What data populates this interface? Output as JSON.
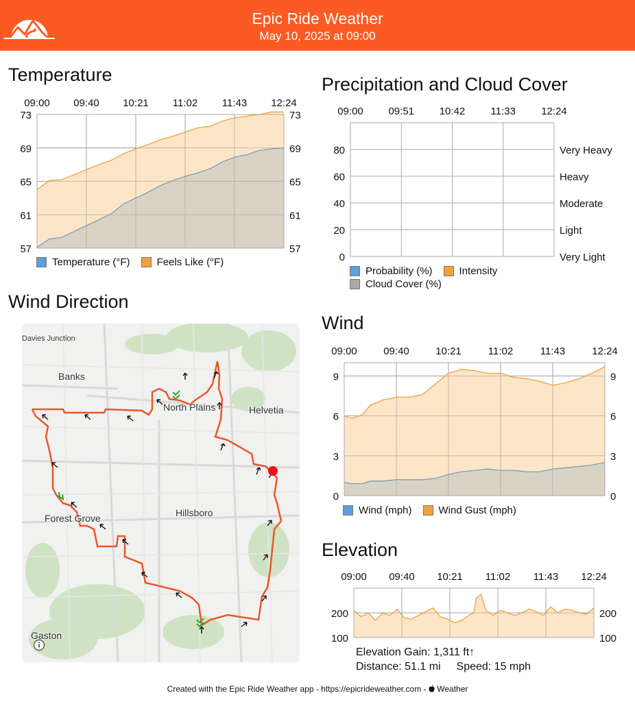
{
  "header": {
    "title": "Epic Ride Weather",
    "subtitle": "May 10, 2025 at 09:00",
    "logo_icon": "mountain-road-logo-icon",
    "background_color": "#fc5a23"
  },
  "panels": {
    "temperature": {
      "title": "Temperature"
    },
    "precipitation": {
      "title": "Precipitation and Cloud Cover"
    },
    "wind_direction": {
      "title": "Wind Direction"
    },
    "wind": {
      "title": "Wind"
    },
    "elevation": {
      "title": "Elevation"
    }
  },
  "legends": {
    "temperature": [
      "Temperature (°F)",
      "Feels Like (°F)"
    ],
    "precipitation": [
      "Probability (%)",
      "Intensity",
      "Cloud Cover (%)"
    ],
    "wind": [
      "Wind (mph)",
      "Wind Gust (mph)"
    ]
  },
  "map": {
    "labels": [
      "Davies Junction",
      "Banks",
      "North Plains",
      "Helvetia",
      "Forest Grove",
      "Hillsboro",
      "Gaston"
    ],
    "info_icon": "info-icon",
    "route_color": "#e8572a"
  },
  "elevation_stats": {
    "gain": "Elevation Gain: 1,311 ft↑",
    "distance": "Distance: 51.1 mi",
    "speed": "Speed: 15 mph"
  },
  "footer": {
    "text": "Created with the Epic Ride Weather app - https://epicrideweather.com - ",
    "apple_icon": "apple-icon",
    "weather": "Weather"
  },
  "colors": {
    "temperature_fill": "#d6d2c4",
    "feels_like_fill": "#fde4c4",
    "series_orange": "#f3a03b",
    "series_blue": "#5aa0dc",
    "series_gray": "#aaaaaa",
    "grid": "#aaaaaa"
  },
  "chart_data": [
    {
      "id": "temperature",
      "type": "area",
      "title": "Temperature",
      "x_ticks": [
        "09:00",
        "09:40",
        "10:21",
        "11:02",
        "11:43",
        "12:24"
      ],
      "y_ticks": [
        57,
        61,
        65,
        69,
        73
      ],
      "ylim": [
        57,
        73
      ],
      "x": [
        0,
        0.05,
        0.1,
        0.15,
        0.2,
        0.25,
        0.3,
        0.35,
        0.4,
        0.45,
        0.5,
        0.55,
        0.6,
        0.65,
        0.7,
        0.75,
        0.8,
        0.85,
        0.9,
        0.95,
        1
      ],
      "series": [
        {
          "name": "Temperature (°F)",
          "values": [
            57.1,
            58.1,
            58.3,
            59.0,
            59.7,
            60.4,
            61.1,
            62.3,
            63.0,
            63.7,
            64.5,
            65.1,
            65.6,
            66.0,
            66.5,
            67.3,
            67.9,
            68.2,
            68.7,
            68.9,
            69.0
          ]
        },
        {
          "name": "Feels Like (°F)",
          "values": [
            64.0,
            65.1,
            65.2,
            65.8,
            66.4,
            67.0,
            67.5,
            68.3,
            68.9,
            69.4,
            70.0,
            70.4,
            70.9,
            71.4,
            71.6,
            72.2,
            72.6,
            72.8,
            73.0,
            73.3,
            73.3
          ]
        }
      ]
    },
    {
      "id": "precipitation",
      "type": "line",
      "title": "Precipitation and Cloud Cover",
      "x_ticks": [
        "09:00",
        "09:51",
        "10:42",
        "11:33",
        "12:24"
      ],
      "y_ticks": [
        0,
        20,
        40,
        60,
        80
      ],
      "y2_ticks": [
        "Very Light",
        "Light",
        "Moderate",
        "Heavy",
        "Very Heavy"
      ],
      "ylim": [
        0,
        100
      ],
      "series": [
        {
          "name": "Probability (%)",
          "values": []
        },
        {
          "name": "Intensity",
          "values": []
        },
        {
          "name": "Cloud Cover (%)",
          "values": []
        }
      ]
    },
    {
      "id": "wind",
      "type": "area",
      "title": "Wind",
      "x_ticks": [
        "09:00",
        "09:40",
        "10:21",
        "11:02",
        "11:43",
        "12:24"
      ],
      "y_ticks": [
        0,
        3,
        6,
        9
      ],
      "ylim": [
        0,
        10
      ],
      "x": [
        0,
        0.03,
        0.07,
        0.1,
        0.15,
        0.2,
        0.25,
        0.3,
        0.35,
        0.4,
        0.45,
        0.5,
        0.55,
        0.6,
        0.65,
        0.7,
        0.75,
        0.8,
        0.85,
        0.9,
        0.95,
        1
      ],
      "series": [
        {
          "name": "Wind (mph)",
          "values": [
            1.0,
            0.9,
            0.9,
            1.1,
            1.1,
            1.2,
            1.2,
            1.2,
            1.3,
            1.6,
            1.8,
            1.9,
            2.0,
            1.9,
            1.9,
            1.8,
            1.8,
            2.0,
            2.1,
            2.2,
            2.3,
            2.5
          ]
        },
        {
          "name": "Wind Gust (mph)",
          "values": [
            6.0,
            5.8,
            6.1,
            6.8,
            7.2,
            7.4,
            7.4,
            7.6,
            8.4,
            9.2,
            9.5,
            9.4,
            9.2,
            9.2,
            8.9,
            8.8,
            8.6,
            8.3,
            8.5,
            8.8,
            9.2,
            9.7
          ]
        }
      ]
    },
    {
      "id": "elevation",
      "type": "area",
      "title": "Elevation",
      "x_ticks": [
        "09:00",
        "09:40",
        "10:21",
        "11:02",
        "11:43",
        "12:24"
      ],
      "y_ticks": [
        100,
        200
      ],
      "ylim": [
        100,
        300
      ],
      "x": [
        0,
        0.03,
        0.06,
        0.09,
        0.12,
        0.15,
        0.18,
        0.21,
        0.24,
        0.27,
        0.3,
        0.33,
        0.36,
        0.39,
        0.42,
        0.45,
        0.48,
        0.5,
        0.51,
        0.53,
        0.55,
        0.58,
        0.61,
        0.64,
        0.67,
        0.7,
        0.73,
        0.76,
        0.79,
        0.82,
        0.85,
        0.88,
        0.91,
        0.94,
        0.97,
        1
      ],
      "series": [
        {
          "name": "Elevation",
          "values": [
            210,
            185,
            200,
            170,
            200,
            190,
            215,
            180,
            175,
            190,
            205,
            220,
            185,
            175,
            160,
            170,
            190,
            200,
            260,
            275,
            210,
            190,
            210,
            200,
            190,
            200,
            215,
            205,
            190,
            225,
            200,
            215,
            210,
            200,
            195,
            220
          ]
        }
      ]
    }
  ]
}
